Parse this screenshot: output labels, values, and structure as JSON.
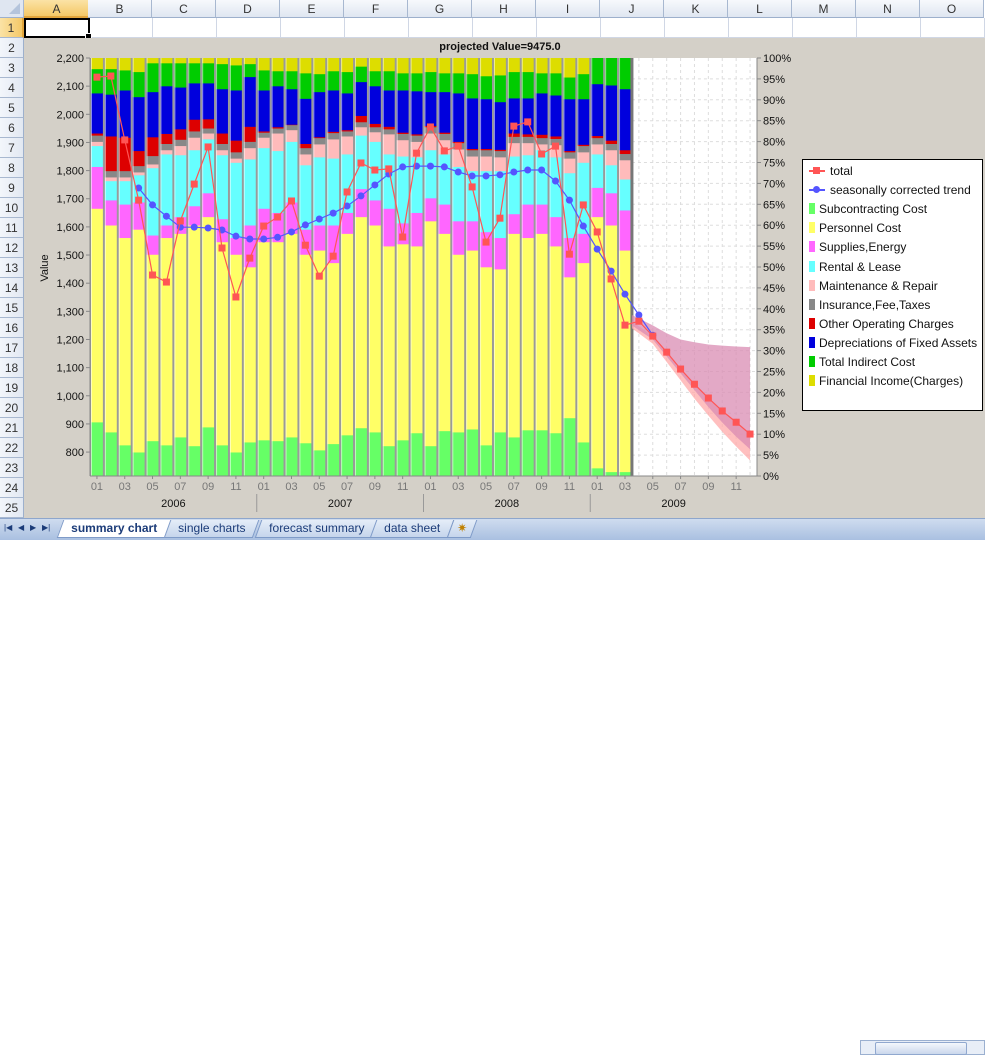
{
  "sheet": {
    "columns": [
      "A",
      "B",
      "C",
      "D",
      "E",
      "F",
      "G",
      "H",
      "I",
      "J",
      "K",
      "L",
      "M",
      "N",
      "O"
    ],
    "rows": [
      "1",
      "2",
      "3",
      "4",
      "5",
      "6",
      "7",
      "8",
      "9",
      "10",
      "11",
      "12",
      "13",
      "14",
      "15",
      "16",
      "17",
      "18",
      "19",
      "20",
      "21",
      "22",
      "23",
      "24",
      "25"
    ],
    "selected_cell": "A1",
    "tabs": [
      {
        "label": "summary chart",
        "active": true
      },
      {
        "label": "single charts",
        "active": false
      },
      {
        "label": "forecast summary",
        "active": false
      },
      {
        "label": "data sheet",
        "active": false
      }
    ],
    "nav_icons": [
      "first-sheet-icon",
      "prev-sheet-icon",
      "next-sheet-icon",
      "last-sheet-icon"
    ]
  },
  "chart_data": {
    "type": "bar",
    "stacked": true,
    "title": "projected Value=9475.0",
    "ylabel": "Value",
    "ylim": [
      715,
      2200
    ],
    "y2lim": [
      0,
      100
    ],
    "left_ticks": [
      "800",
      "900",
      "1,000",
      "1,100",
      "1,200",
      "1,300",
      "1,400",
      "1,500",
      "1,600",
      "1,700",
      "1,800",
      "1,900",
      "2,000",
      "2,100",
      "2,200"
    ],
    "right_ticks": [
      "0%",
      "5%",
      "10%",
      "15%",
      "20%",
      "25%",
      "30%",
      "35%",
      "40%",
      "45%",
      "50%",
      "55%",
      "60%",
      "65%",
      "70%",
      "75%",
      "80%",
      "85%",
      "90%",
      "95%",
      "100%"
    ],
    "month_labels": [
      "01",
      "03",
      "05",
      "07",
      "09",
      "11",
      "01",
      "03",
      "05",
      "07",
      "09",
      "11",
      "01",
      "03",
      "05",
      "07",
      "09",
      "11",
      "01",
      "03",
      "05",
      "07",
      "09",
      "11"
    ],
    "years": [
      "2006",
      "2007",
      "2008",
      "2009"
    ],
    "x_start": "2006-01",
    "x_end": "2009-12",
    "actual_months": 39,
    "legend_position": "right",
    "grid": "dashed in forecast region",
    "series": [
      {
        "name": "Subcontracting Cost",
        "color": "#66ff66",
        "values": [
          12.9,
          10.5,
          7.4,
          5.7,
          8.4,
          7.4,
          9.3,
          7.2,
          11.7,
          7.4,
          5.7,
          8.1,
          8.6,
          8.4,
          9.3,
          7.9,
          6.2,
          7.7,
          9.8,
          11.5,
          10.5,
          7.2,
          8.6,
          10.3,
          7.2,
          10.8,
          10.5,
          11.2,
          7.4,
          10.5,
          9.3,
          11,
          11,
          10.3,
          13.9,
          8.1,
          1.9,
          1,
          1
        ]
      },
      {
        "name": "Personnel Cost",
        "color": "#ffff66",
        "values": [
          51.1,
          49.5,
          49.6,
          53.3,
          44.6,
          49.6,
          48.7,
          52.8,
          50.3,
          48.6,
          47.3,
          41.9,
          47.4,
          47.6,
          48.7,
          45.1,
          47.8,
          43.3,
          48.2,
          50.5,
          49.5,
          47.8,
          46.9,
          44.7,
          53.8,
          47.2,
          42.5,
          42.8,
          42.6,
          39,
          48.7,
          46,
          47,
          44.7,
          33.7,
          42.9,
          60.1,
          59,
          53
        ]
      },
      {
        "name": "Supplies,Energy",
        "color": "#ff66ff",
        "values": [
          10,
          6,
          8,
          6.5,
          4.6,
          3,
          4,
          4.6,
          5.7,
          5.5,
          4,
          10,
          8,
          7,
          7.5,
          6,
          6,
          9,
          5,
          6.7,
          6,
          9,
          5,
          8,
          5.5,
          7,
          8,
          7,
          8.4,
          7.5,
          4.7,
          8,
          7,
          7,
          9.4,
          7,
          7,
          7.7,
          9.6
        ]
      },
      {
        "name": "Rental & Lease",
        "color": "#66ffff",
        "values": [
          5,
          4.6,
          5.6,
          6.5,
          16.1,
          17,
          14.8,
          13.4,
          12.9,
          15.3,
          18,
          15.8,
          14.5,
          14.8,
          14.5,
          15.4,
          16.3,
          16,
          14,
          12.8,
          14,
          13,
          16,
          13.3,
          11.5,
          12,
          13,
          12,
          14.6,
          16,
          13.8,
          11.8,
          13,
          14.3,
          15.5,
          17,
          8,
          6.7,
          7.4
        ]
      },
      {
        "name": "Maintenance & Repair",
        "color": "#ffbbbb",
        "values": [
          1,
          0.9,
          0.9,
          0.7,
          0.9,
          1,
          2.2,
          3,
          1.4,
          1.2,
          1,
          2.7,
          2.5,
          4.2,
          2.8,
          2.6,
          3.1,
          4.6,
          4.3,
          2,
          2.3,
          4.8,
          3.9,
          3.7,
          4,
          3.4,
          4.2,
          3.5,
          3.5,
          3.3,
          3.2,
          2.9,
          1.4,
          2.9,
          3.5,
          2.5,
          2.4,
          3.6,
          4.6
        ]
      },
      {
        "name": "Insurance,Fee,Taxes",
        "color": "#888888",
        "values": [
          1.5,
          1.5,
          1.5,
          1.5,
          2,
          1.5,
          1.5,
          1.5,
          1.2,
          1.5,
          1.5,
          1.5,
          1.2,
          1.2,
          1.2,
          1.5,
          1.5,
          1.5,
          1.2,
          1.2,
          1.2,
          1.2,
          1.5,
          1.5,
          1.5,
          1.5,
          1.5,
          1.5,
          1.5,
          1.5,
          1.5,
          1.5,
          1.5,
          1.5,
          1.5,
          1.5,
          1.5,
          1.5,
          1.5
        ]
      },
      {
        "name": "Other Operating Charges",
        "color": "#dd0000",
        "values": [
          0.5,
          8.3,
          8,
          3.6,
          4.5,
          2.4,
          2.5,
          2.8,
          2.2,
          2.5,
          2.8,
          3.6,
          0.3,
          0.3,
          0.1,
          1,
          0.2,
          0.3,
          0.3,
          1.5,
          0.8,
          0.6,
          0.3,
          0.3,
          0.3,
          0.3,
          0.3,
          0.3,
          0.3,
          0.3,
          0.8,
          0.6,
          0.8,
          0.6,
          0.3,
          0.3,
          0.5,
          0.8,
          0.9
        ]
      },
      {
        "name": "Depreciations of Fixed Assets",
        "color": "#0000dd",
        "values": [
          9.6,
          10,
          11.3,
          12.9,
          10.8,
          11.4,
          10,
          8.7,
          8.6,
          10.6,
          12,
          11.9,
          9.8,
          9.8,
          8.5,
          10.8,
          10.8,
          9.9,
          8.8,
          8.1,
          9,
          8.7,
          10.1,
          10.3,
          8.1,
          9.7,
          11.6,
          12.1,
          11.9,
          11.4,
          8.4,
          8.6,
          9.9,
          9.8,
          12.4,
          10.9,
          12.4,
          13.2,
          14.6
        ]
      },
      {
        "name": "Total Indirect Cost",
        "color": "#00cc00",
        "values": [
          5.8,
          6.1,
          4.8,
          6,
          6.9,
          5.5,
          5.8,
          4.8,
          4.8,
          6,
          6,
          3.1,
          4.8,
          3.6,
          4.3,
          6.1,
          4.3,
          4.6,
          5.1,
          3.7,
          3.6,
          4.6,
          4.1,
          4.3,
          4.8,
          4.5,
          4.8,
          5.8,
          5.5,
          6.4,
          6.3,
          6.3,
          4.8,
          5.3,
          5.2,
          6,
          6.2,
          6.5,
          7.4
        ]
      },
      {
        "name": "Financial Income(Charges)",
        "color": "#dddd00",
        "values": [
          2.6,
          2.6,
          2.9,
          3.3,
          1.2,
          1.2,
          1.2,
          1.2,
          1.2,
          1.4,
          1.7,
          1.4,
          2.9,
          3.1,
          3.1,
          3.6,
          3.8,
          3.1,
          3.3,
          2,
          3.1,
          3.1,
          3.6,
          3.6,
          3.3,
          3.6,
          3.6,
          3.8,
          4.3,
          4.1,
          3.3,
          3.3,
          3.6,
          3.6,
          4.6,
          3.8,
          0,
          0,
          0
        ]
      }
    ],
    "lines": [
      {
        "name": "total",
        "color": "#ff5555",
        "marker": "square",
        "start": "2006-01",
        "values": [
          2132,
          2136,
          1909,
          1695,
          1429,
          1404,
          1621,
          1752,
          1884,
          1525,
          1351,
          1489,
          1603,
          1635,
          1692,
          1535,
          1425,
          1496,
          1724,
          1827,
          1802,
          1806,
          1564,
          1862,
          1955,
          1870,
          1887,
          1742,
          1546,
          1631,
          1958,
          1973,
          1859,
          1887,
          1503,
          1678,
          1582,
          1415,
          1251,
          1265,
          1212,
          1155,
          1095,
          1041,
          992,
          946,
          906,
          864
        ]
      },
      {
        "name": "seasonally corrected trend",
        "color": "#5555ff",
        "marker": "circle",
        "start": "2006-04",
        "values": [
          1738,
          1678,
          1638,
          1599,
          1599,
          1596,
          1589,
          1567,
          1557,
          1557,
          1563,
          1582,
          1607,
          1628,
          1649,
          1674,
          1710,
          1749,
          1788,
          1813,
          1816,
          1816,
          1813,
          1795,
          1781,
          1781,
          1785,
          1795,
          1802,
          1802,
          1763,
          1695,
          1603,
          1521,
          1443,
          1361,
          1287,
          1215
        ]
      }
    ],
    "forecast_band_outer": {
      "color": "#d98cb3",
      "start": "2009-04",
      "upper": [
        1287,
        1250,
        1222,
        1200,
        1190,
        1182,
        1178,
        1175,
        1173
      ],
      "lower": [
        1250,
        1200,
        1140,
        1080,
        1020,
        960,
        905,
        855,
        810
      ]
    },
    "forecast_band_inner": {
      "color": "#ffaaaa",
      "start": "2009-04",
      "upper": [
        1265,
        1212,
        1155,
        1095,
        1041,
        992,
        946,
        906,
        864
      ],
      "lower": [
        1240,
        1185,
        1120,
        1055,
        990,
        930,
        872,
        820,
        770
      ]
    }
  }
}
